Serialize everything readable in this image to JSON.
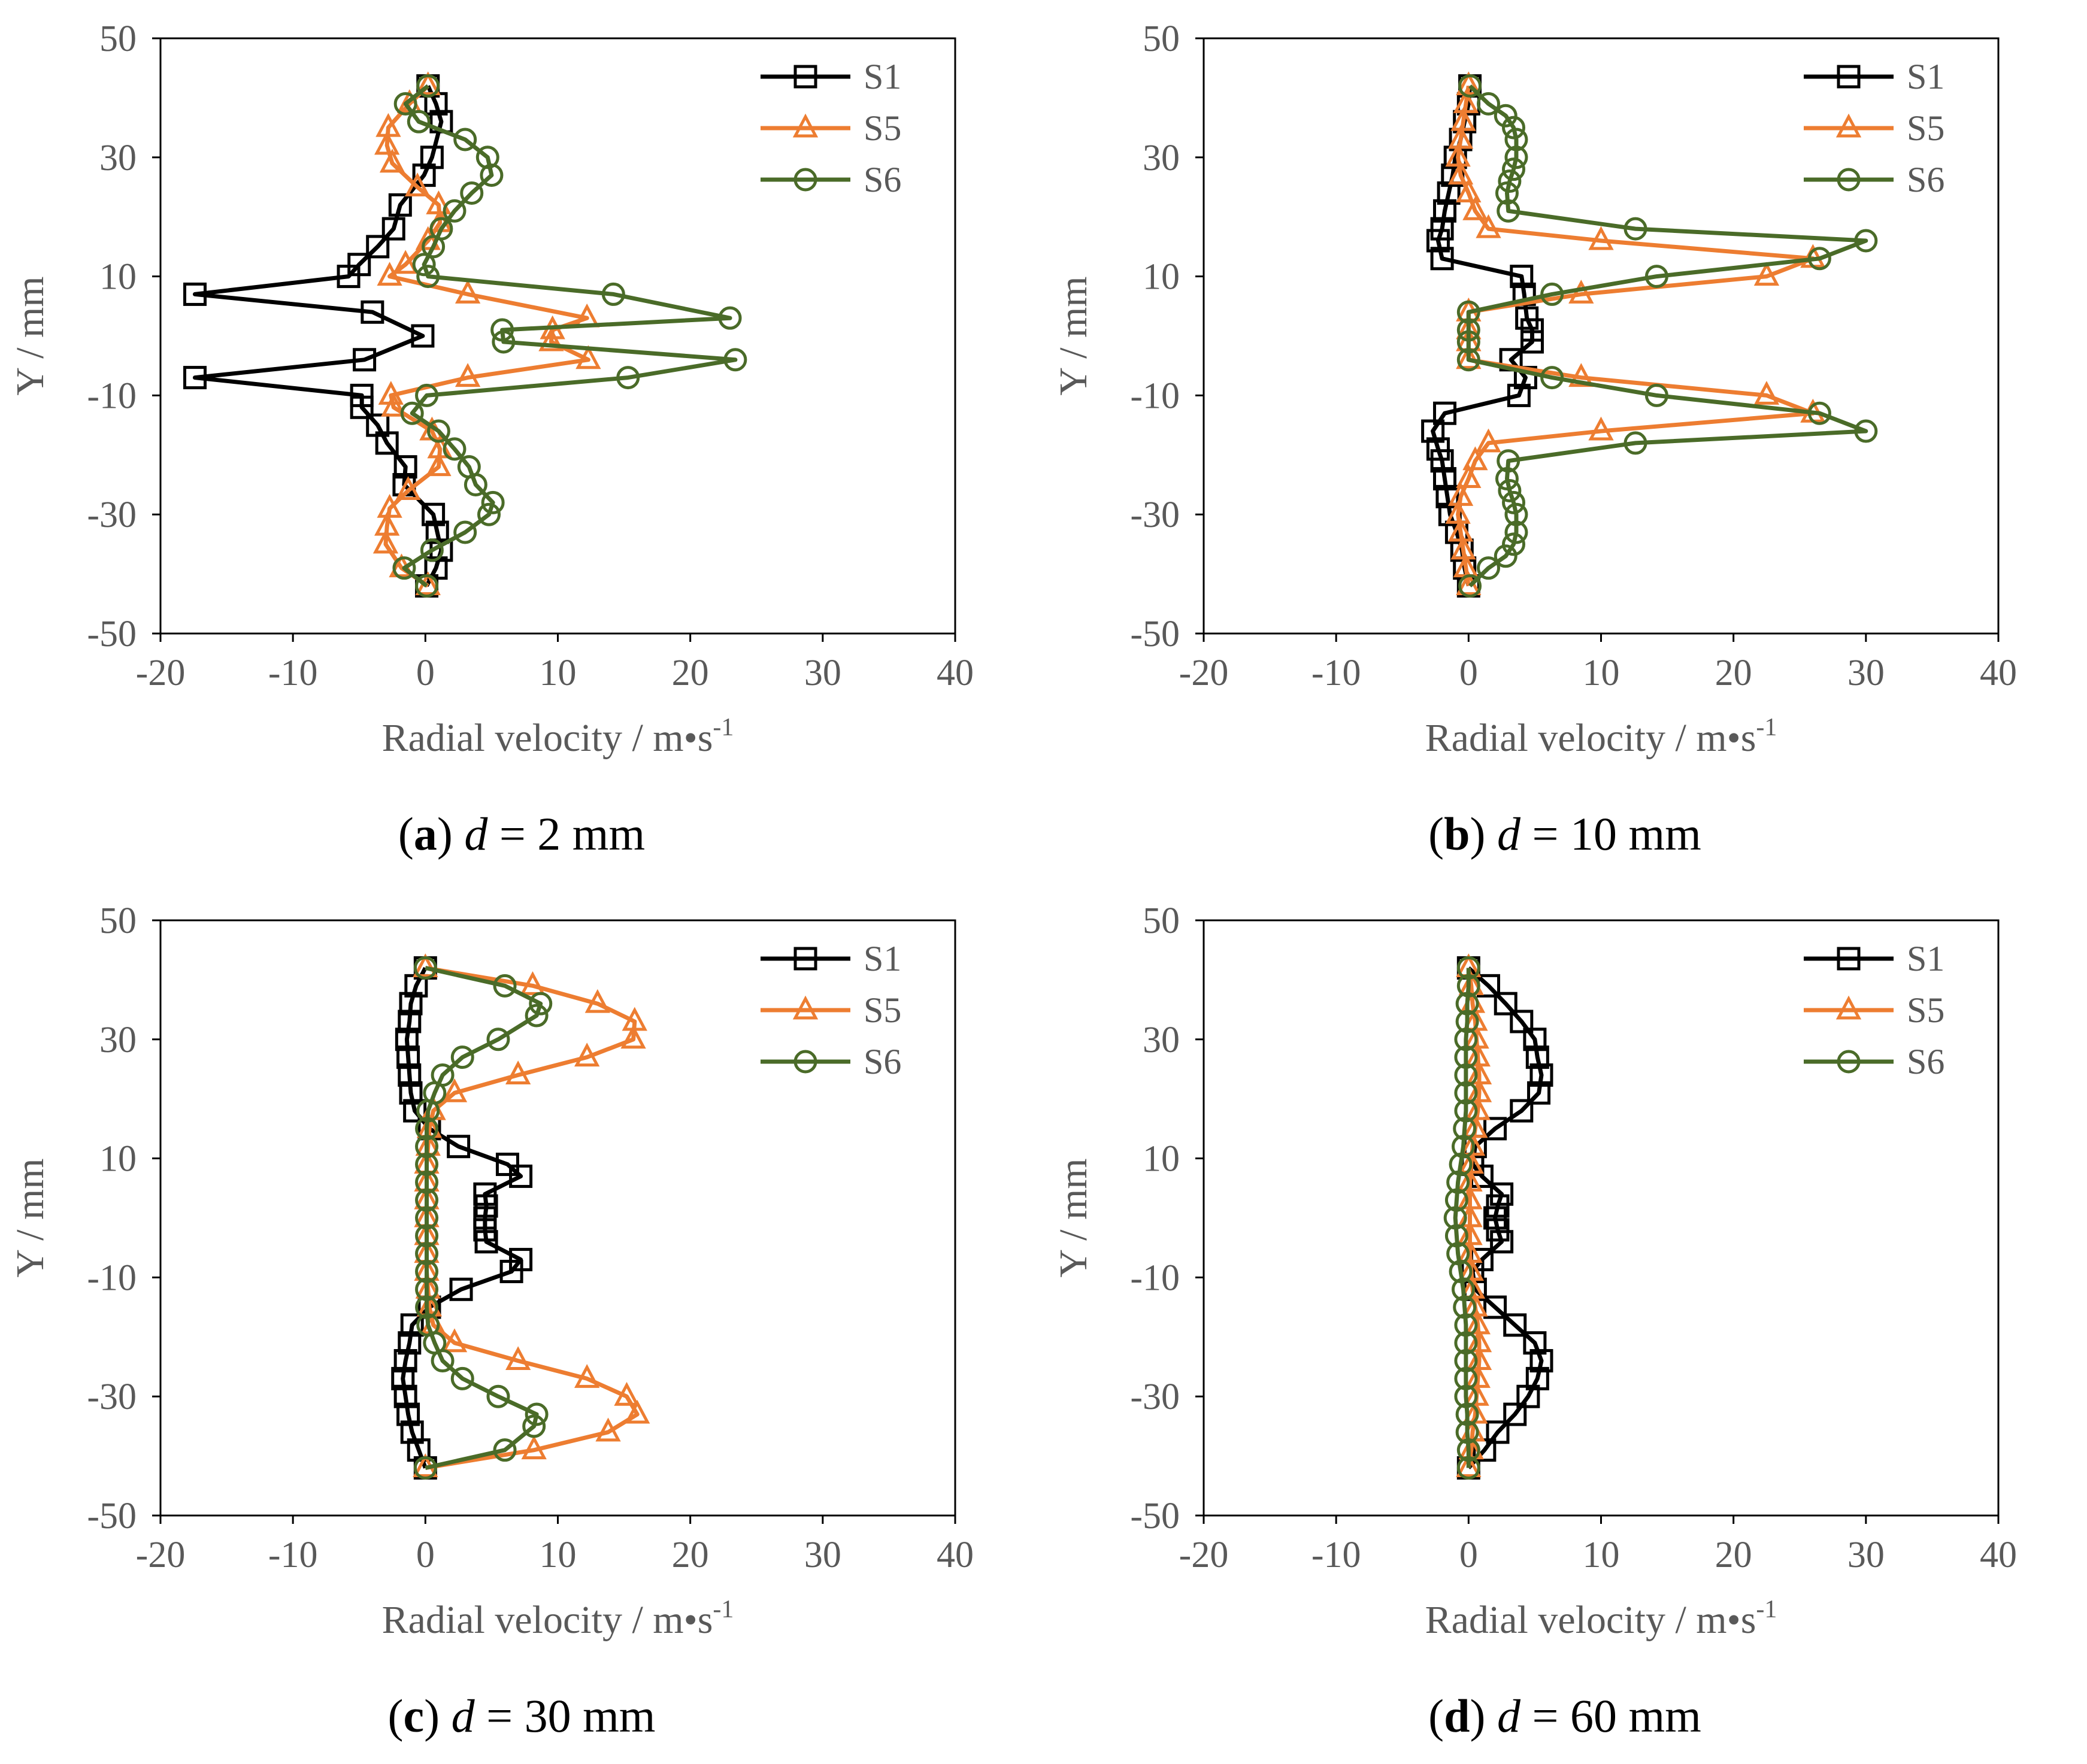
{
  "chart_data": [
    {
      "type": "line",
      "panel_label": "a",
      "caption_var": "d",
      "caption_value": " = 2 mm",
      "xlabel": "Radial velocity / m•s",
      "xlabel_exp": "-1",
      "ylabel": "Y / mm",
      "xlim": [
        -20,
        40
      ],
      "ylim": [
        -50,
        50
      ],
      "xticks": [
        -20,
        -10,
        0,
        10,
        20,
        30,
        40
      ],
      "yticks": [
        50,
        30,
        10,
        -10,
        -30,
        -50
      ],
      "legend_position": "top-right",
      "series": [
        {
          "name": "S1",
          "color": "#000000",
          "marker": "square",
          "y": [
            42,
            39,
            36,
            30,
            27,
            22,
            18,
            15,
            12,
            10,
            7,
            4,
            0,
            -4,
            -7,
            -10,
            -12,
            -15,
            -18,
            -22,
            -25,
            -30,
            -33,
            -36,
            -39,
            -42
          ],
          "x": [
            0.2,
            0.8,
            1.2,
            0.5,
            -0.1,
            -1.9,
            -2.4,
            -3.6,
            -5.0,
            -5.8,
            -17.4,
            -4.0,
            -0.2,
            -4.6,
            -17.4,
            -4.8,
            -4.8,
            -3.6,
            -2.9,
            -1.5,
            -1.6,
            0.6,
            0.9,
            1.2,
            0.8,
            0.1
          ]
        },
        {
          "name": "S5",
          "color": "#ED7D31",
          "marker": "triangle",
          "y": [
            42,
            39,
            35,
            32,
            29,
            25,
            22,
            19,
            16,
            12,
            10,
            7,
            3,
            1,
            -1,
            -4,
            -7,
            -10,
            -12,
            -16,
            -19,
            -22,
            -26,
            -29,
            -32,
            -35,
            -39,
            -42
          ],
          "x": [
            0.2,
            -1.2,
            -2.8,
            -2.9,
            -2.5,
            -0.6,
            1.0,
            1.1,
            0.2,
            -1.5,
            -2.7,
            3.2,
            12.2,
            9.6,
            9.5,
            12.3,
            3.2,
            -2.6,
            -2.4,
            0.5,
            1.1,
            1.0,
            -1.3,
            -2.7,
            -2.9,
            -3.0,
            -1.8,
            0.2
          ]
        },
        {
          "name": "S6",
          "color": "#4A6B28",
          "marker": "circle",
          "y": [
            42,
            39,
            36,
            33,
            30,
            27,
            24,
            21,
            18,
            15,
            12,
            10,
            7,
            3,
            1,
            -1,
            -4,
            -7,
            -10,
            -13,
            -16,
            -19,
            -22,
            -25,
            -28,
            -30,
            -33,
            -36,
            -39,
            -42
          ],
          "x": [
            0.2,
            -1.5,
            -0.5,
            3.0,
            4.7,
            5.0,
            3.5,
            2.2,
            1.2,
            0.6,
            -0.1,
            0.2,
            14.2,
            23.0,
            5.8,
            5.9,
            23.4,
            15.3,
            0.1,
            -1.0,
            1.0,
            2.2,
            3.3,
            3.8,
            5.1,
            4.8,
            3.0,
            0.5,
            -1.6,
            0.1
          ]
        }
      ]
    },
    {
      "type": "line",
      "panel_label": "b",
      "caption_var": "d",
      "caption_value": " = 10 mm",
      "xlabel": "Radial velocity / m•s",
      "xlabel_exp": "-1",
      "ylabel": "Y / mm",
      "xlim": [
        -20,
        40
      ],
      "ylim": [
        -50,
        50
      ],
      "xticks": [
        -20,
        -10,
        0,
        10,
        20,
        30,
        40
      ],
      "yticks": [
        50,
        30,
        10,
        -10,
        -30,
        -50
      ],
      "legend_position": "top-right",
      "series": [
        {
          "name": "S1",
          "color": "#000000",
          "marker": "square",
          "y": [
            42,
            39,
            36,
            33,
            30,
            27,
            24,
            21,
            18,
            16,
            13,
            10,
            7,
            3,
            1,
            -1,
            -4,
            -7,
            -10,
            -13,
            -16,
            -19,
            -21,
            -24,
            -27,
            -30,
            -33,
            -36,
            -39,
            -42
          ],
          "x": [
            0.1,
            0.0,
            -0.3,
            -0.6,
            -1.0,
            -1.2,
            -1.5,
            -1.8,
            -2.0,
            -2.3,
            -2.0,
            4.0,
            4.2,
            4.4,
            4.8,
            4.8,
            3.2,
            4.3,
            3.8,
            -1.8,
            -2.7,
            -2.3,
            -2.0,
            -1.8,
            -1.6,
            -1.4,
            -0.9,
            -0.5,
            -0.3,
            0.0
          ]
        },
        {
          "name": "S5",
          "color": "#ED7D31",
          "marker": "triangle",
          "y": [
            42,
            39,
            36,
            33,
            30,
            27,
            24,
            21,
            18,
            16,
            13,
            10,
            7,
            4,
            1,
            -1,
            -4,
            -7,
            -10,
            -13,
            -16,
            -18,
            -21,
            -24,
            -27,
            -30,
            -33,
            -36,
            -39,
            -42
          ],
          "x": [
            0.0,
            -0.2,
            -0.4,
            -0.6,
            -0.8,
            -0.6,
            0.0,
            0.5,
            1.5,
            10.0,
            26.0,
            22.5,
            8.5,
            0.0,
            0.0,
            0.0,
            0.0,
            8.5,
            22.5,
            26.0,
            10.0,
            1.5,
            0.5,
            0.0,
            -0.6,
            -0.8,
            -0.6,
            -0.4,
            -0.2,
            0.0
          ]
        },
        {
          "name": "S6",
          "color": "#4A6B28",
          "marker": "circle",
          "y": [
            42,
            39,
            37,
            35,
            33,
            30,
            28,
            26,
            24,
            21,
            18,
            16,
            13,
            10,
            7,
            4,
            1,
            -1,
            -4,
            -7,
            -10,
            -13,
            -16,
            -18,
            -21,
            -24,
            -26,
            -28,
            -30,
            -33,
            -35,
            -37,
            -39,
            -42
          ],
          "x": [
            0.1,
            1.5,
            2.8,
            3.4,
            3.6,
            3.6,
            3.4,
            3.1,
            2.9,
            3.0,
            12.6,
            30.0,
            26.5,
            14.2,
            6.3,
            0.0,
            0.0,
            0.0,
            0.0,
            6.3,
            14.2,
            26.5,
            30.0,
            12.6,
            3.0,
            2.9,
            3.1,
            3.4,
            3.6,
            3.6,
            3.4,
            2.8,
            1.5,
            0.1
          ]
        }
      ]
    },
    {
      "type": "line",
      "panel_label": "c",
      "caption_var": "d",
      "caption_value": " = 30 mm",
      "xlabel": "Radial velocity / m•s",
      "xlabel_exp": "-1",
      "ylabel": "Y / mm",
      "xlim": [
        -20,
        40
      ],
      "ylim": [
        -50,
        50
      ],
      "xticks": [
        -20,
        -10,
        0,
        10,
        20,
        30,
        40
      ],
      "yticks": [
        50,
        30,
        10,
        -10,
        -30,
        -50
      ],
      "legend_position": "top-right",
      "series": [
        {
          "name": "S1",
          "color": "#000000",
          "marker": "square",
          "y": [
            42,
            39,
            36,
            33,
            30,
            27,
            24,
            21,
            18,
            15,
            12,
            9,
            7,
            4,
            2,
            0,
            -2,
            -4,
            -7,
            -9,
            -12,
            -15,
            -18,
            -21,
            -24,
            -27,
            -30,
            -33,
            -36,
            -39,
            -42
          ],
          "x": [
            0.0,
            -0.7,
            -1.1,
            -1.2,
            -1.4,
            -1.3,
            -1.2,
            -1.1,
            -0.8,
            0.3,
            2.5,
            6.2,
            7.2,
            4.5,
            4.6,
            4.5,
            4.5,
            4.6,
            7.2,
            6.5,
            2.7,
            0.3,
            -1.0,
            -1.2,
            -1.5,
            -1.7,
            -1.5,
            -1.3,
            -1.0,
            -0.5,
            0.0
          ]
        },
        {
          "name": "S5",
          "color": "#ED7D31",
          "marker": "triangle",
          "y": [
            42,
            39,
            36,
            33,
            30,
            27,
            24,
            21,
            18,
            15,
            12,
            9,
            6,
            3,
            0,
            -3,
            -6,
            -9,
            -12,
            -15,
            -18,
            -21,
            -24,
            -27,
            -30,
            -33,
            -36,
            -39,
            -42
          ],
          "x": [
            0.0,
            8.1,
            13.0,
            15.8,
            15.7,
            12.2,
            7.0,
            2.2,
            0.6,
            0.3,
            0.2,
            0.1,
            0.1,
            0.1,
            0.1,
            0.1,
            0.1,
            0.1,
            0.2,
            0.3,
            0.6,
            2.2,
            7.0,
            12.2,
            15.2,
            16.0,
            13.8,
            8.2,
            0.0
          ]
        },
        {
          "name": "S6",
          "color": "#4A6B28",
          "marker": "circle",
          "y": [
            42,
            39,
            36,
            34,
            30,
            27,
            24,
            21,
            18,
            15,
            12,
            9,
            6,
            3,
            0,
            -3,
            -6,
            -9,
            -12,
            -15,
            -18,
            -21,
            -24,
            -27,
            -30,
            -33,
            -35,
            -39,
            -42
          ],
          "x": [
            0.0,
            6.0,
            8.7,
            8.4,
            5.5,
            2.8,
            1.3,
            0.7,
            0.2,
            0.1,
            0.1,
            0.1,
            0.1,
            0.1,
            0.1,
            0.1,
            0.1,
            0.1,
            0.1,
            0.1,
            0.2,
            0.7,
            1.3,
            2.8,
            5.5,
            8.4,
            8.2,
            6.0,
            0.0
          ]
        }
      ]
    },
    {
      "type": "line",
      "panel_label": "d",
      "caption_var": "d",
      "caption_value": " = 60 mm",
      "xlabel": "Radial velocity / m•s",
      "xlabel_exp": "-1",
      "ylabel": "Y / mm",
      "xlim": [
        -20,
        40
      ],
      "ylim": [
        -50,
        50
      ],
      "xticks": [
        -20,
        -10,
        0,
        10,
        20,
        30,
        40
      ],
      "yticks": [
        50,
        30,
        10,
        -10,
        -30,
        -50
      ],
      "legend_position": "top-right",
      "series": [
        {
          "name": "S1",
          "color": "#000000",
          "marker": "square",
          "y": [
            42,
            39,
            36,
            33,
            30,
            27,
            24,
            21,
            18,
            15,
            12,
            9,
            7,
            4,
            2,
            0,
            -2,
            -4,
            -7,
            -9,
            -12,
            -15,
            -18,
            -21,
            -24,
            -27,
            -30,
            -33,
            -36,
            -39,
            -42
          ],
          "x": [
            0.0,
            1.5,
            2.8,
            4.0,
            5.0,
            5.2,
            5.5,
            5.3,
            4.0,
            2.0,
            0.5,
            0.3,
            1.0,
            2.5,
            2.2,
            2.0,
            2.2,
            2.5,
            1.0,
            0.3,
            0.5,
            2.0,
            3.5,
            5.0,
            5.5,
            5.2,
            4.5,
            3.5,
            2.2,
            1.2,
            0.0
          ]
        },
        {
          "name": "S5",
          "color": "#ED7D31",
          "marker": "triangle",
          "y": [
            42,
            39,
            36,
            33,
            30,
            27,
            24,
            21,
            18,
            15,
            12,
            9,
            6,
            3,
            0,
            -3,
            -6,
            -9,
            -12,
            -15,
            -18,
            -21,
            -24,
            -27,
            -30,
            -33,
            -36,
            -39,
            -42
          ],
          "x": [
            0.0,
            0.2,
            0.3,
            0.5,
            0.6,
            0.7,
            0.8,
            0.8,
            0.7,
            0.5,
            0.3,
            0.2,
            0.1,
            0.1,
            0.1,
            0.1,
            0.1,
            0.2,
            0.3,
            0.5,
            0.7,
            0.8,
            0.8,
            0.7,
            0.6,
            0.5,
            0.3,
            0.2,
            0.0
          ]
        },
        {
          "name": "S6",
          "color": "#4A6B28",
          "marker": "circle",
          "y": [
            42,
            39,
            36,
            33,
            30,
            27,
            24,
            21,
            18,
            15,
            12,
            9,
            6,
            3,
            0,
            -3,
            -6,
            -9,
            -12,
            -15,
            -18,
            -21,
            -24,
            -27,
            -30,
            -33,
            -36,
            -39,
            -42
          ],
          "x": [
            0.0,
            0.0,
            -0.1,
            -0.1,
            -0.2,
            -0.2,
            -0.2,
            -0.2,
            -0.2,
            -0.3,
            -0.4,
            -0.6,
            -0.8,
            -0.9,
            -1.0,
            -0.9,
            -0.8,
            -0.6,
            -0.4,
            -0.3,
            -0.2,
            -0.2,
            -0.2,
            -0.2,
            -0.2,
            -0.1,
            -0.1,
            0.0,
            0.0
          ]
        }
      ]
    }
  ]
}
